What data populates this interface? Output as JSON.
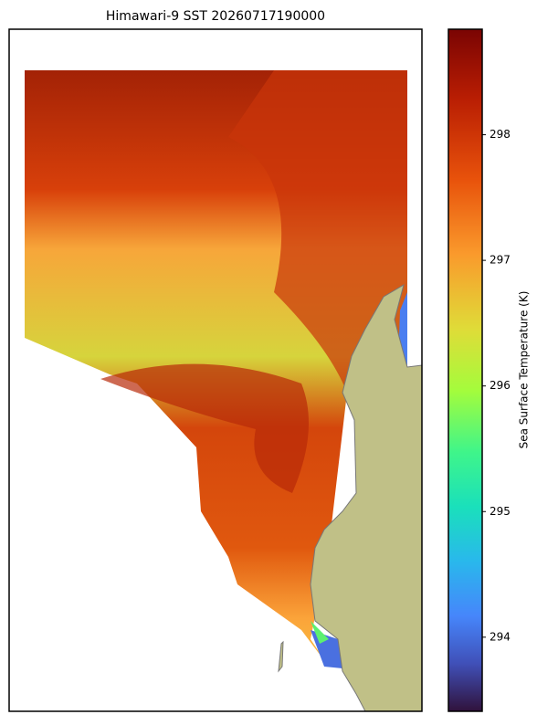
{
  "chart_data": {
    "type": "heatmap",
    "title": "Himawari-9 SST 20260717190000",
    "colorbar_label": "Sea Surface Temperature (K)",
    "clim": [
      293.41,
      298.84
    ],
    "cticks": [
      294,
      295,
      296,
      297,
      298
    ]
  }
}
